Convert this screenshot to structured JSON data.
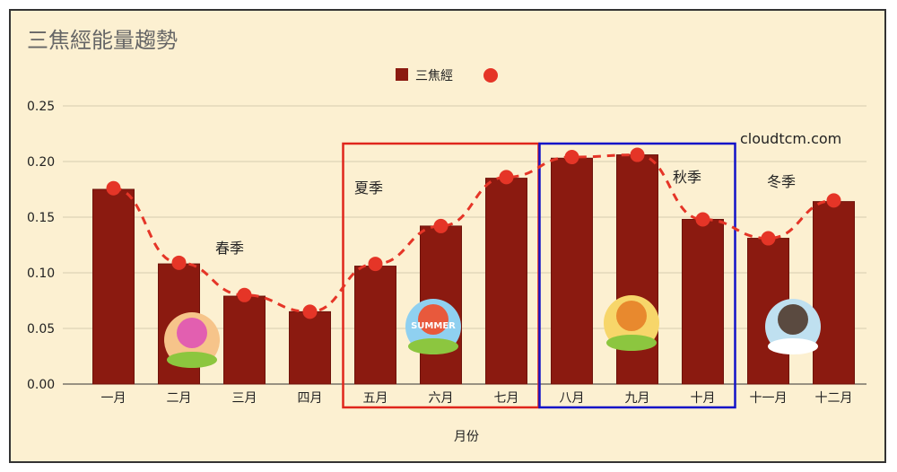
{
  "chart_data": {
    "type": "bar",
    "title": "三焦經能量趨勢",
    "xlabel": "月份",
    "ylabel": "",
    "categories": [
      "一月",
      "二月",
      "三月",
      "四月",
      "五月",
      "六月",
      "七月",
      "八月",
      "九月",
      "十月",
      "十一月",
      "十二月"
    ],
    "series": [
      {
        "name": "三焦經",
        "type": "bar",
        "color": "#8b1a10",
        "values": [
          0.175,
          0.108,
          0.079,
          0.065,
          0.106,
          0.142,
          0.185,
          0.203,
          0.206,
          0.148,
          0.131,
          0.164
        ]
      },
      {
        "name": "",
        "type": "line-dashed-markers",
        "color": "#e53527",
        "values": [
          0.176,
          0.109,
          0.08,
          0.065,
          0.108,
          0.142,
          0.186,
          0.204,
          0.206,
          0.148,
          0.131,
          0.165
        ]
      }
    ],
    "ylim": [
      0,
      0.25
    ],
    "yticks": [
      "0.00",
      "0.05",
      "0.10",
      "0.15",
      "0.20",
      "0.25"
    ],
    "grid": true,
    "legend": "top-center",
    "annotations": {
      "watermark": "cloudtcm.com",
      "seasons": [
        {
          "label": "春季",
          "icon": "cherry-blossom-tree-icon"
        },
        {
          "label": "夏季",
          "icon": "summer-icon",
          "icon_text": "SUMMER",
          "box_months": [
            "五月",
            "七月"
          ],
          "box_color": "#e0261c"
        },
        {
          "label": "秋季",
          "icon": "autumn-tree-icon",
          "box_months": [
            "八月",
            "十月"
          ],
          "box_color": "#1212c8"
        },
        {
          "label": "冬季",
          "icon": "winter-tree-icon"
        }
      ]
    },
    "background": "#fcf0d1"
  }
}
